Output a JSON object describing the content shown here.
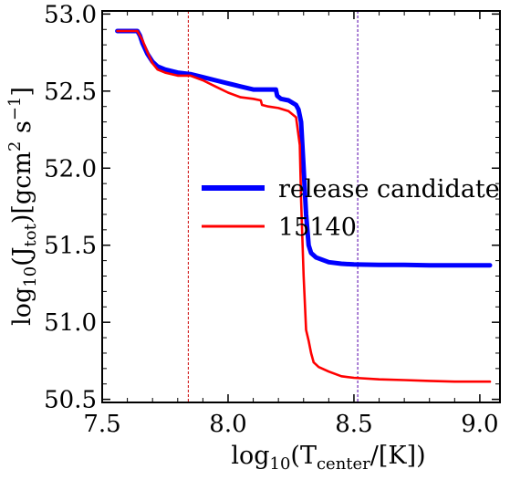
{
  "chart_data": {
    "type": "line",
    "xlabel": {
      "base": "log",
      "base_sub": "10",
      "open": "(T",
      "sub": "center",
      "close": "/[K])"
    },
    "ylabel": {
      "base": "log",
      "base_sub": "10",
      "open": "(J",
      "sub": "tot",
      "mid": ")[gcm",
      "sup1": "2",
      "mid2": " s",
      "sup2": "−1",
      "close": "]"
    },
    "xlim": [
      7.5,
      9.08
    ],
    "ylim": [
      50.48,
      53.02
    ],
    "xticks": [
      7.5,
      8.0,
      8.5,
      9.0
    ],
    "xtick_labels": [
      "7.5",
      "8.0",
      "8.5",
      "9.0"
    ],
    "yticks": [
      50.5,
      51.0,
      51.5,
      52.0,
      52.5,
      53.0
    ],
    "ytick_labels": [
      "50.5",
      "51.0",
      "51.5",
      "52.0",
      "52.5",
      "53.0"
    ],
    "vlines": [
      {
        "x": 7.842,
        "color": "#cc0000"
      },
      {
        "x": 8.515,
        "color": "#5500aa"
      }
    ],
    "legend_position": "center-right",
    "series": [
      {
        "name": "release candidate",
        "color": "#0000ff",
        "x": [
          7.56,
          7.64,
          7.65,
          7.66,
          7.68,
          7.7,
          7.72,
          7.75,
          7.8,
          7.85,
          7.9,
          7.95,
          8.0,
          8.05,
          8.1,
          8.15,
          8.19,
          8.195,
          8.21,
          8.24,
          8.27,
          8.28,
          8.29,
          8.3,
          8.31,
          8.32,
          8.33,
          8.35,
          8.4,
          8.45,
          8.5,
          8.6,
          8.7,
          8.8,
          8.9,
          9.0,
          9.04
        ],
        "y": [
          52.89,
          52.89,
          52.86,
          52.81,
          52.74,
          52.69,
          52.66,
          52.64,
          52.62,
          52.61,
          52.59,
          52.57,
          52.55,
          52.53,
          52.51,
          52.51,
          52.51,
          52.47,
          52.45,
          52.44,
          52.41,
          52.38,
          52.3,
          52.0,
          51.7,
          51.5,
          51.45,
          51.42,
          51.39,
          51.38,
          51.375,
          51.372,
          51.372,
          51.37,
          51.37,
          51.37,
          51.37
        ]
      },
      {
        "name": "15140",
        "color": "#ff0000",
        "x": [
          7.56,
          7.64,
          7.66,
          7.68,
          7.7,
          7.72,
          7.75,
          7.8,
          7.85,
          7.9,
          7.95,
          8.0,
          8.05,
          8.1,
          8.13,
          8.135,
          8.16,
          8.2,
          8.24,
          8.27,
          8.285,
          8.29,
          8.3,
          8.31,
          8.32,
          8.33,
          8.34,
          8.36,
          8.4,
          8.45,
          8.5,
          8.6,
          8.7,
          8.8,
          8.9,
          9.0,
          9.04
        ],
        "y": [
          52.89,
          52.89,
          52.83,
          52.75,
          52.68,
          52.64,
          52.62,
          52.6,
          52.6,
          52.57,
          52.53,
          52.49,
          52.46,
          52.45,
          52.44,
          52.41,
          52.4,
          52.39,
          52.37,
          52.33,
          52.15,
          51.8,
          51.3,
          50.95,
          50.88,
          50.8,
          50.74,
          50.71,
          50.68,
          50.65,
          50.64,
          50.63,
          50.625,
          50.62,
          50.615,
          50.615,
          50.615
        ]
      }
    ]
  }
}
